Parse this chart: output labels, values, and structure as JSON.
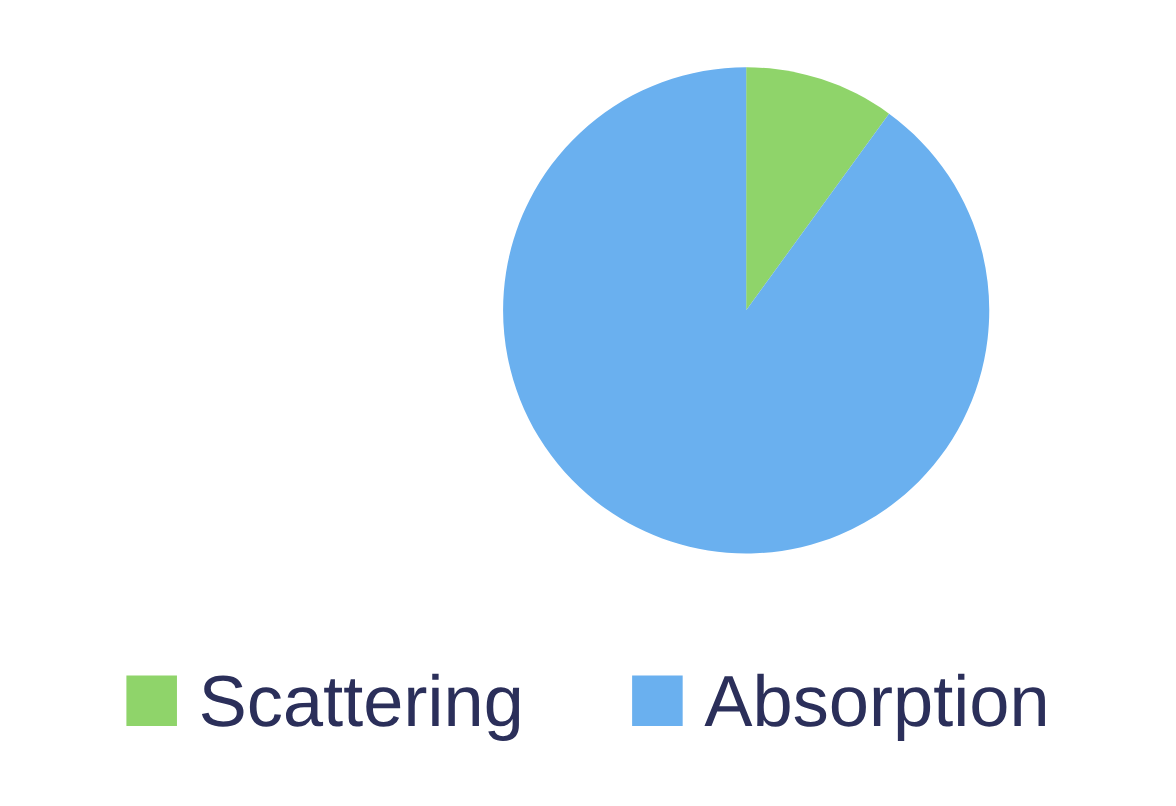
{
  "chart_data": {
    "type": "pie",
    "categories": [
      "Scattering",
      "Absorption"
    ],
    "values": [
      10,
      90
    ],
    "colors": [
      "#8fd46a",
      "#6ab0ef"
    ],
    "legend": "bottom"
  }
}
